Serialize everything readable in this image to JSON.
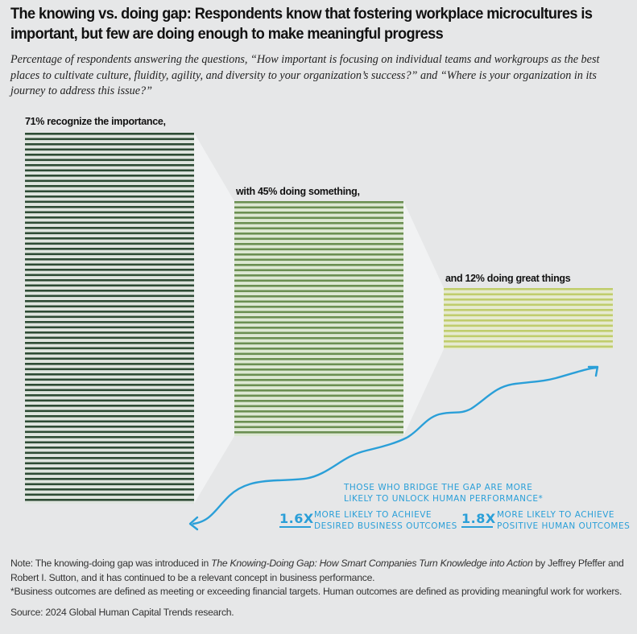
{
  "title": "The knowing vs. doing gap: Respondents know that fostering workplace microcultures is important, but few are doing enough to make meaningful progress",
  "subtitle": "Percentage of respondents answering the questions, “How important is focusing on individual teams and workgroups as the best places to cultivate culture, fluidity, agility, and diversity to your organization’s success?” and “Where is your organization in its journey to address this issue?”",
  "chart_data": {
    "type": "bar",
    "title": "The knowing vs. doing gap",
    "categories": [
      "Recognize the importance",
      "Doing something",
      "Doing great things"
    ],
    "values": [
      71,
      45,
      12
    ],
    "unit": "%",
    "labels": [
      "71% recognize the importance,",
      "with 45% doing something,",
      "and 12% doing great things"
    ],
    "colors": [
      "#2e4b35",
      "#6b8f52",
      "#c0cd6c"
    ],
    "bar_fills": [
      "#dfe5df",
      "#dde8d3",
      "#e6ead0"
    ],
    "xlabel": "",
    "ylabel": "",
    "ylim": [
      0,
      71
    ],
    "grid": false,
    "legend": "none"
  },
  "annotation": {
    "headline_line1": "THOSE WHO BRIDGE THE GAP ARE MORE",
    "headline_line2": "LIKELY TO UNLOCK HUMAN PERFORMANCE*",
    "stats": [
      {
        "value": "1.6X",
        "line1": "MORE LIKELY TO ACHIEVE",
        "line2": "DESIRED BUSINESS OUTCOMES"
      },
      {
        "value": "1.8X",
        "line1": "MORE LIKELY TO ACHIEVE",
        "line2": "POSITIVE HUMAN OUTCOMES"
      }
    ],
    "color": "#2a9fd8"
  },
  "notes": {
    "note_prefix": "Note: The knowing-doing gap was introduced in ",
    "note_book": "The Knowing-Doing Gap: How Smart Companies Turn Knowledge into Action",
    "note_suffix": " by Jeffrey Pfeffer and Robert I. Sutton, and it has continued to be a relevant concept in business performance.",
    "footnote": "*Business outcomes are defined as meeting or exceeding financial targets. Human outcomes are defined as providing meaningful work for workers.",
    "source": "Source: 2024 Global Human Capital Trends research."
  }
}
